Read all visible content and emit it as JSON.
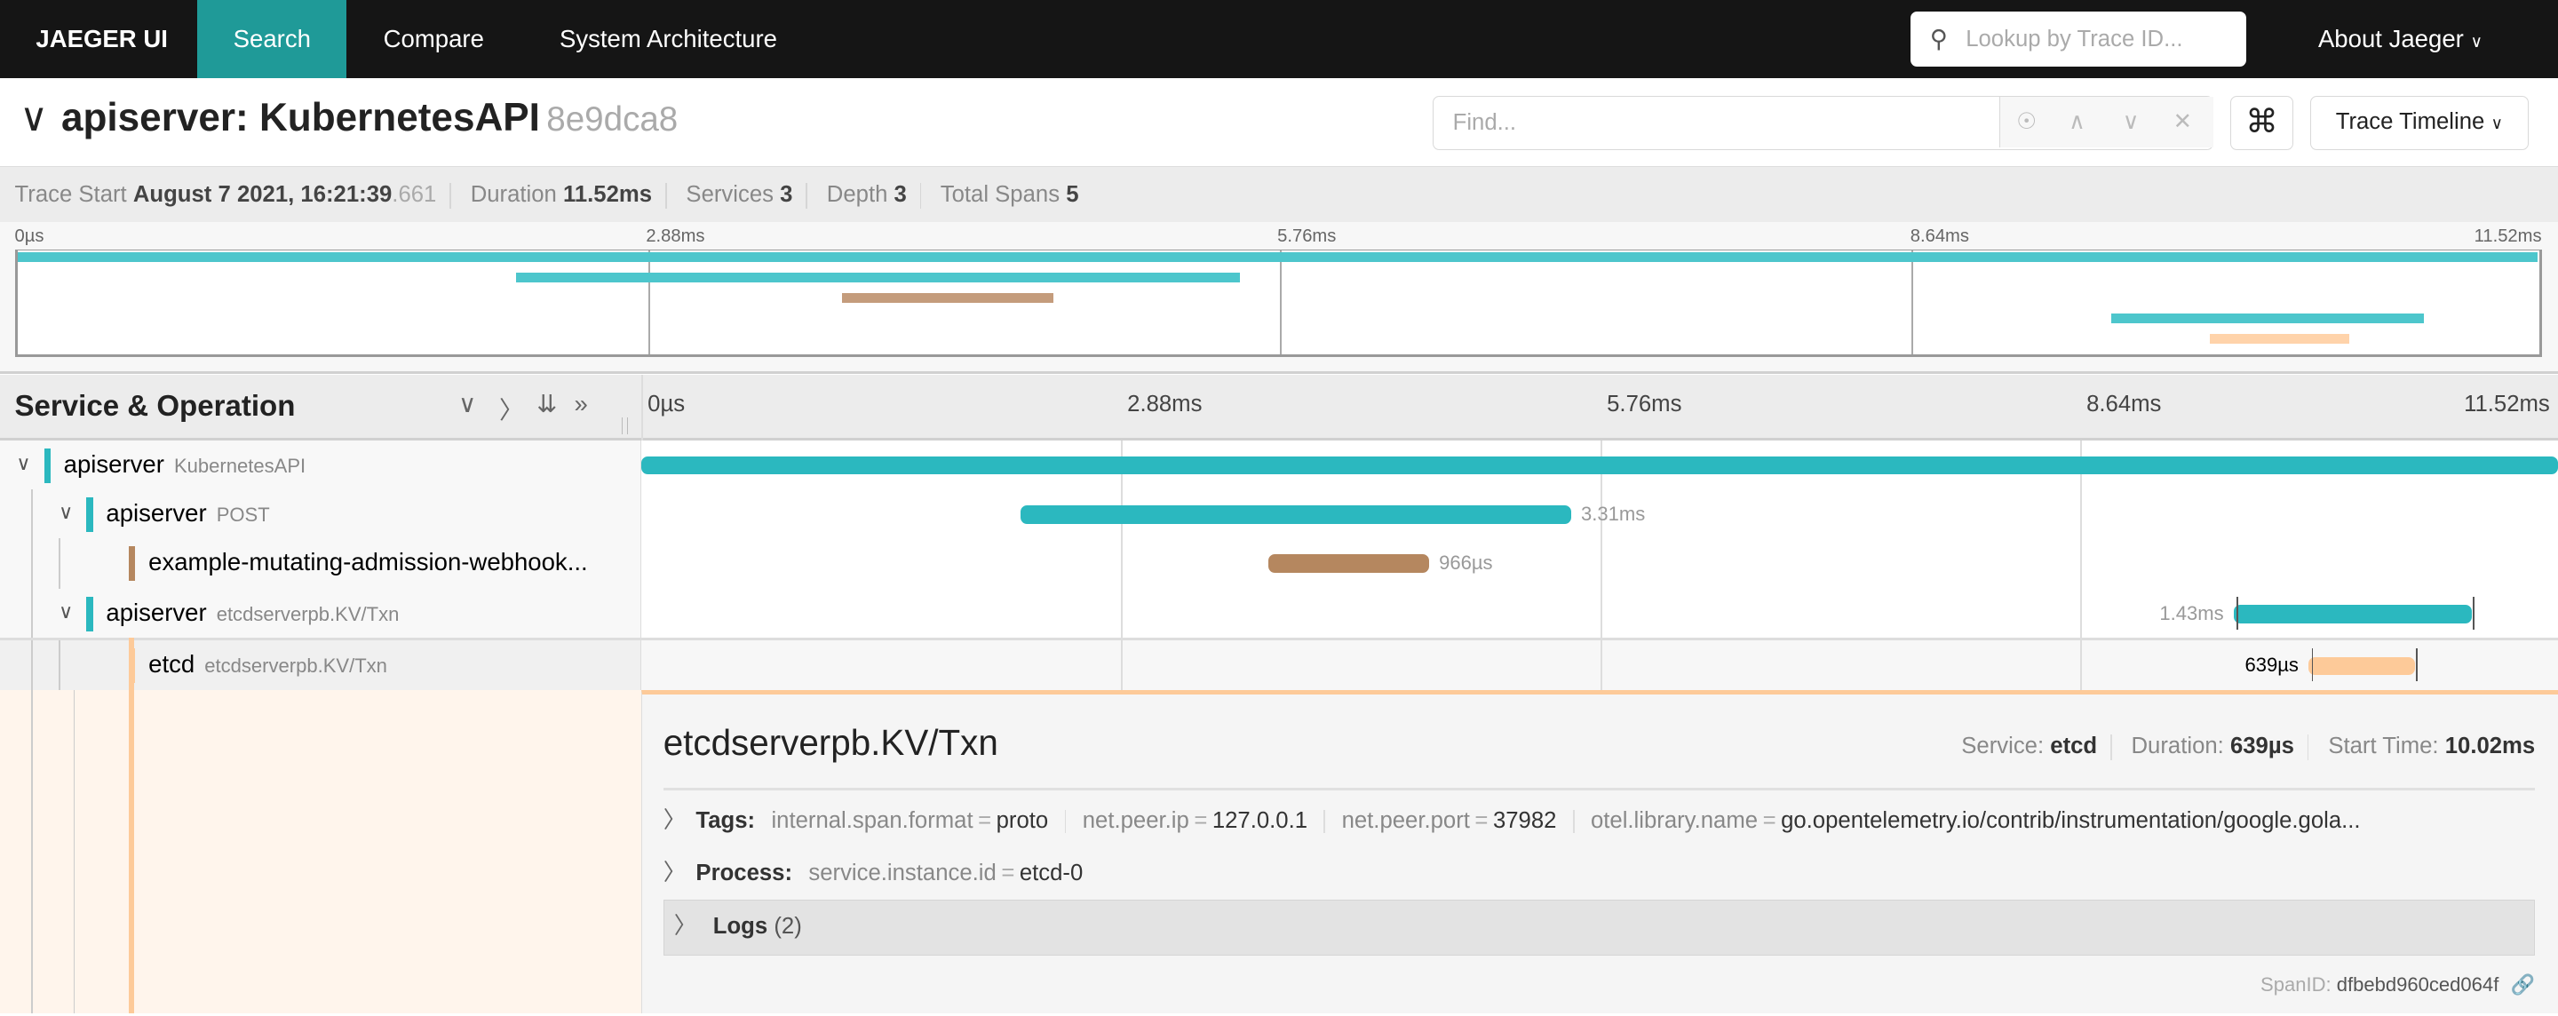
{
  "nav": {
    "brand": "JAEGER UI",
    "tabs": [
      {
        "label": "Search",
        "active": true
      },
      {
        "label": "Compare"
      },
      {
        "label": "System Architecture"
      }
    ],
    "lookup_placeholder": "Lookup by Trace ID...",
    "about": "About Jaeger",
    "accent": "#1f9a98"
  },
  "trace": {
    "title": "apiserver: KubernetesAPI",
    "trace_id": "8e9dca8",
    "find_placeholder": "Find...",
    "view_mode": "Trace Timeline"
  },
  "stats": {
    "trace_start_label": "Trace Start",
    "trace_start": "August 7 2021, 16:21:39",
    "trace_start_ms": ".661",
    "duration_label": "Duration",
    "duration": "11.52ms",
    "services_label": "Services",
    "services": "3",
    "depth_label": "Depth",
    "depth": "3",
    "spans_label": "Total Spans",
    "spans": "5"
  },
  "ticks": [
    "0µs",
    "2.88ms",
    "5.76ms",
    "8.64ms",
    "11.52ms"
  ],
  "header": {
    "title": "Service & Operation"
  },
  "spans": [
    {
      "service": "apiserver",
      "operation": "KubernetesAPI",
      "start_ms": 0,
      "duration_ms": 11.52,
      "label": "",
      "color": "#2bb8bf",
      "depth": 0,
      "toggle": true
    },
    {
      "service": "apiserver",
      "operation": "POST",
      "start_ms": 2.28,
      "duration_ms": 3.31,
      "label": "3.31ms",
      "color": "#2bb8bf",
      "depth": 1,
      "toggle": true
    },
    {
      "service": "example-mutating-admission-webhook...",
      "operation": "",
      "start_ms": 3.77,
      "duration_ms": 0.966,
      "label": "966µs",
      "color": "#b5875f",
      "depth": 2,
      "toggle": false
    },
    {
      "service": "apiserver",
      "operation": "etcdserverpb.KV/Txn",
      "start_ms": 9.57,
      "duration_ms": 1.43,
      "label": "1.43ms",
      "color": "#2bb8bf",
      "depth": 1,
      "toggle": true
    },
    {
      "service": "etcd",
      "operation": "etcdserverpb.KV/Txn",
      "start_ms": 10.02,
      "duration_ms": 0.639,
      "label": "639µs",
      "color": "#fdca99",
      "depth": 2,
      "toggle": false,
      "selected": true
    }
  ],
  "detail": {
    "operation": "etcdserverpb.KV/Txn",
    "service_label": "Service:",
    "service": "etcd",
    "duration_label": "Duration:",
    "duration": "639µs",
    "start_label": "Start Time:",
    "start": "10.02ms",
    "tags_label": "Tags:",
    "tags": [
      {
        "k": "internal.span.format",
        "v": "proto"
      },
      {
        "k": "net.peer.ip",
        "v": "127.0.0.1"
      },
      {
        "k": "net.peer.port",
        "v": "37982"
      },
      {
        "k": "otel.library.name",
        "v": "go.opentelemetry.io/contrib/instrumentation/google.gola..."
      }
    ],
    "process_label": "Process:",
    "process": [
      {
        "k": "service.instance.id",
        "v": "etcd-0"
      }
    ],
    "logs_label": "Logs",
    "logs_count": "(2)",
    "spanid_label": "SpanID:",
    "spanid": "dfbebd960ced064f"
  }
}
